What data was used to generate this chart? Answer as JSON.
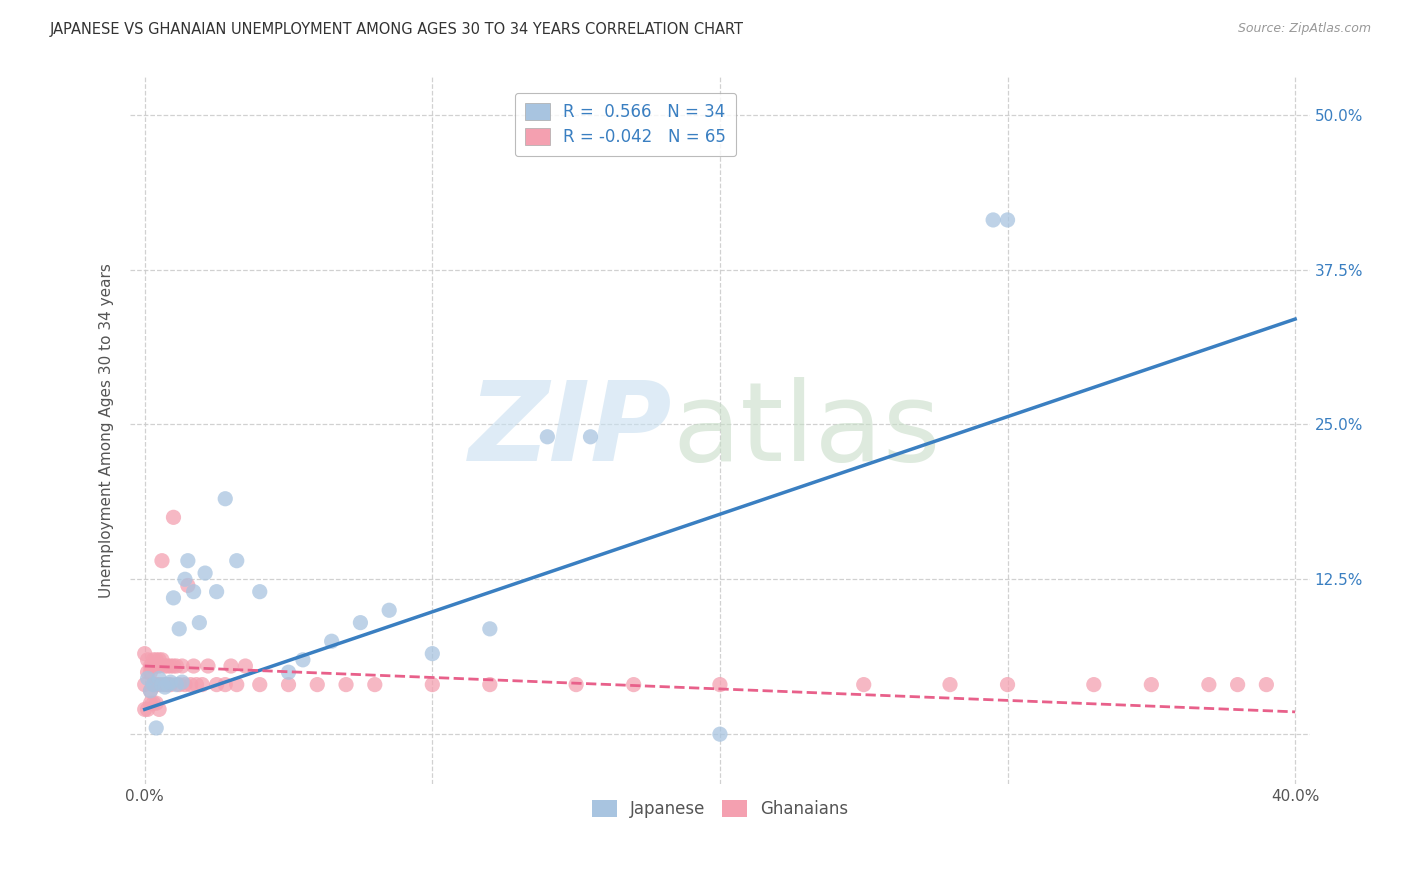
{
  "title": "JAPANESE VS GHANAIAN UNEMPLOYMENT AMONG AGES 30 TO 34 YEARS CORRELATION CHART",
  "source": "Source: ZipAtlas.com",
  "ylabel": "Unemployment Among Ages 30 to 34 years",
  "xlim": [
    -0.005,
    0.405
  ],
  "ylim": [
    -0.04,
    0.53
  ],
  "xticks": [
    0.0,
    0.1,
    0.2,
    0.3,
    0.4
  ],
  "xticklabels": [
    "0.0%",
    "",
    "",
    "",
    "40.0%"
  ],
  "yticks": [
    0.0,
    0.125,
    0.25,
    0.375,
    0.5
  ],
  "yticklabels": [
    "",
    "12.5%",
    "25.0%",
    "37.5%",
    "50.0%"
  ],
  "japanese_R": 0.566,
  "japanese_N": 34,
  "ghanaian_R": -0.042,
  "ghanaian_N": 65,
  "japanese_color": "#a8c4e0",
  "ghanaian_color": "#f4a0b0",
  "japanese_line_color": "#3a7fc1",
  "ghanaian_line_color": "#e8608a",
  "grid_color": "#cccccc",
  "background_color": "#ffffff",
  "japanese_line_x0": 0.0,
  "japanese_line_y0": 0.02,
  "japanese_line_x1": 0.4,
  "japanese_line_y1": 0.335,
  "ghanaian_line_x0": 0.0,
  "ghanaian_line_y0": 0.055,
  "ghanaian_line_x1": 0.4,
  "ghanaian_line_y1": 0.018,
  "japanese_x": [
    0.001,
    0.002,
    0.003,
    0.004,
    0.005,
    0.006,
    0.007,
    0.008,
    0.009,
    0.01,
    0.011,
    0.012,
    0.013,
    0.014,
    0.015,
    0.017,
    0.019,
    0.021,
    0.025,
    0.028,
    0.032,
    0.04,
    0.05,
    0.055,
    0.065,
    0.075,
    0.085,
    0.1,
    0.12,
    0.14,
    0.155,
    0.2,
    0.295,
    0.3
  ],
  "japanese_y": [
    0.045,
    0.035,
    0.04,
    0.005,
    0.045,
    0.04,
    0.038,
    0.04,
    0.042,
    0.11,
    0.04,
    0.085,
    0.042,
    0.125,
    0.14,
    0.115,
    0.09,
    0.13,
    0.115,
    0.19,
    0.14,
    0.115,
    0.05,
    0.06,
    0.075,
    0.09,
    0.1,
    0.065,
    0.085,
    0.24,
    0.24,
    0.0,
    0.415,
    0.415
  ],
  "ghanaian_x": [
    0.0,
    0.0,
    0.001,
    0.001,
    0.002,
    0.002,
    0.002,
    0.003,
    0.003,
    0.003,
    0.004,
    0.004,
    0.004,
    0.005,
    0.005,
    0.005,
    0.006,
    0.006,
    0.007,
    0.007,
    0.008,
    0.008,
    0.009,
    0.009,
    0.01,
    0.01,
    0.011,
    0.012,
    0.013,
    0.014,
    0.015,
    0.016,
    0.017,
    0.018,
    0.02,
    0.022,
    0.025,
    0.028,
    0.03,
    0.032,
    0.035,
    0.04,
    0.05,
    0.06,
    0.07,
    0.08,
    0.1,
    0.12,
    0.15,
    0.17,
    0.2,
    0.25,
    0.28,
    0.3,
    0.33,
    0.35,
    0.37,
    0.38,
    0.39,
    0.0,
    0.001,
    0.002,
    0.003,
    0.004,
    0.005
  ],
  "ghanaian_y": [
    0.065,
    0.04,
    0.05,
    0.06,
    0.05,
    0.055,
    0.035,
    0.055,
    0.06,
    0.04,
    0.055,
    0.04,
    0.06,
    0.055,
    0.06,
    0.04,
    0.06,
    0.14,
    0.055,
    0.04,
    0.055,
    0.04,
    0.055,
    0.04,
    0.055,
    0.175,
    0.055,
    0.04,
    0.055,
    0.04,
    0.12,
    0.04,
    0.055,
    0.04,
    0.04,
    0.055,
    0.04,
    0.04,
    0.055,
    0.04,
    0.055,
    0.04,
    0.04,
    0.04,
    0.04,
    0.04,
    0.04,
    0.04,
    0.04,
    0.04,
    0.04,
    0.04,
    0.04,
    0.04,
    0.04,
    0.04,
    0.04,
    0.04,
    0.04,
    0.02,
    0.02,
    0.025,
    0.025,
    0.025,
    0.02
  ]
}
